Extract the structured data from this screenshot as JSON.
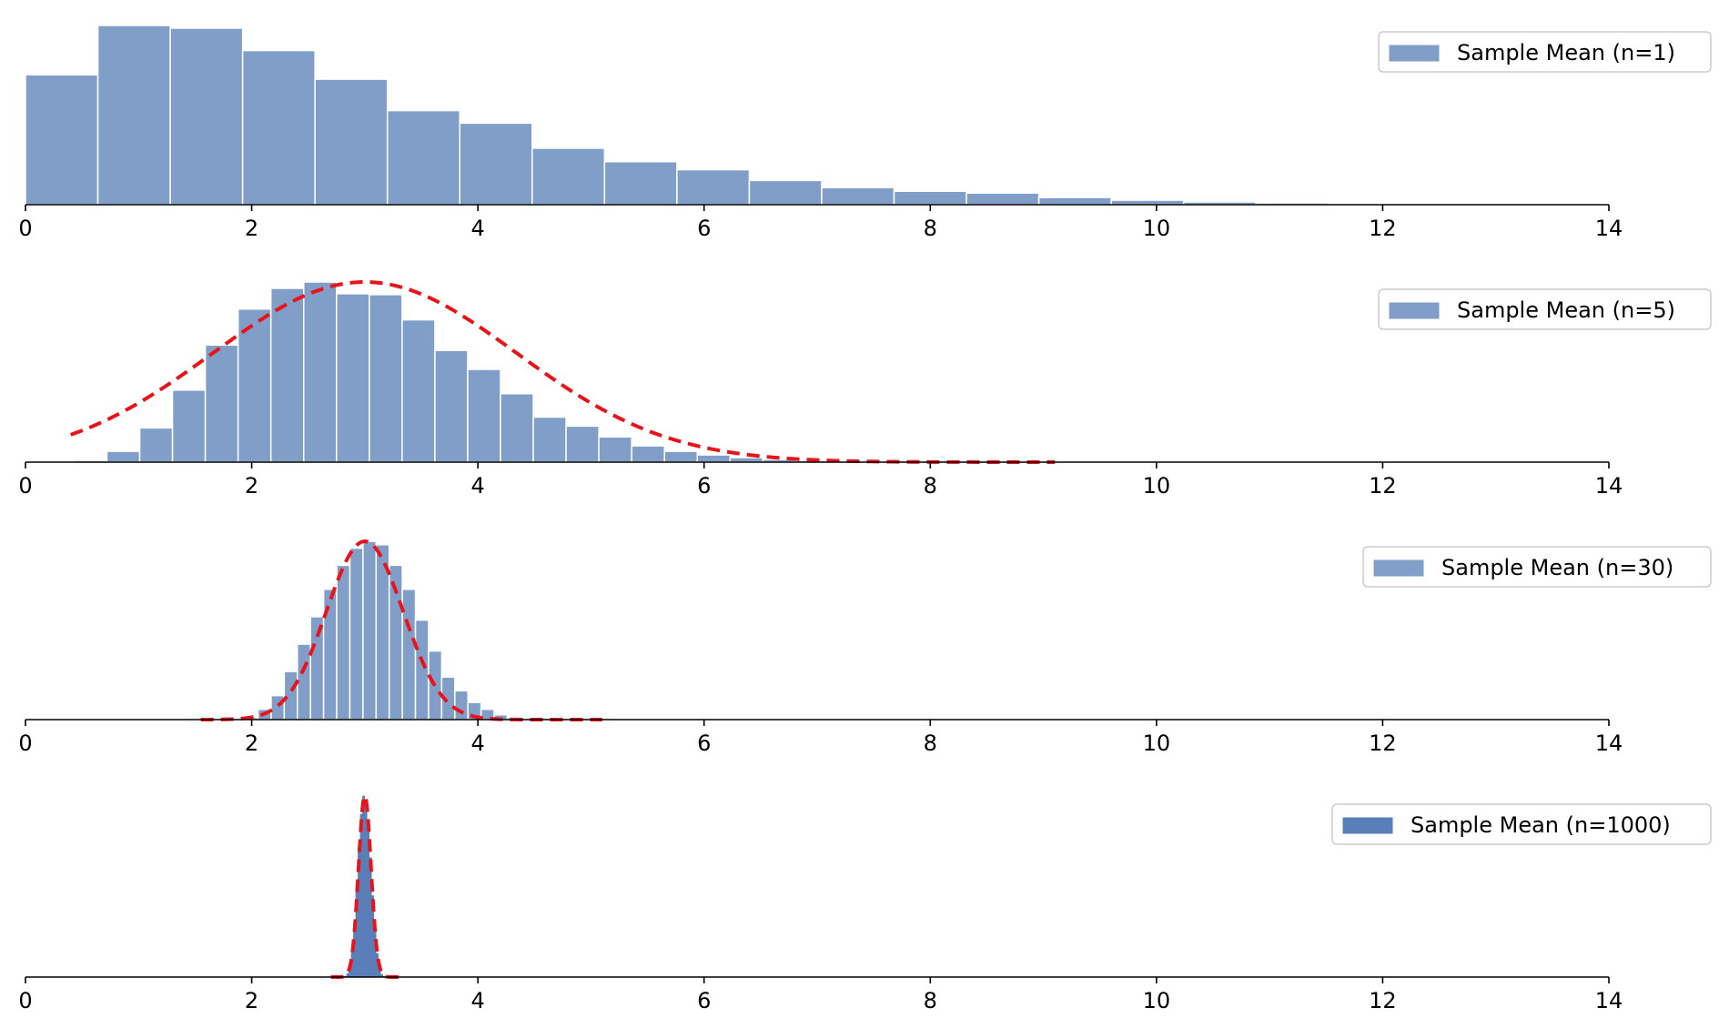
{
  "colors": {
    "bar": "#819ec9",
    "bar_edge": "#ffffff",
    "bar_dense": "#5a7fb8",
    "fit_line": "#e8141b",
    "axis": "#000000",
    "legend_border": "#cccccc"
  },
  "chart_data": [
    {
      "type": "bar",
      "legend": "Sample Mean (n=1)",
      "legend_placement": "top-right",
      "xlim": [
        0,
        14
      ],
      "xticks": [
        0,
        2,
        4,
        6,
        8,
        10,
        12,
        14
      ],
      "y_axis_visible": false,
      "grid": false,
      "bin_width": 0.64,
      "bins": [
        {
          "x0": 0.0,
          "density": 0.145
        },
        {
          "x0": 0.64,
          "density": 0.2
        },
        {
          "x0": 1.28,
          "density": 0.197
        },
        {
          "x0": 1.92,
          "density": 0.172
        },
        {
          "x0": 2.56,
          "density": 0.14
        },
        {
          "x0": 3.2,
          "density": 0.105
        },
        {
          "x0": 3.84,
          "density": 0.091
        },
        {
          "x0": 4.48,
          "density": 0.063
        },
        {
          "x0": 5.12,
          "density": 0.048
        },
        {
          "x0": 5.76,
          "density": 0.039
        },
        {
          "x0": 6.4,
          "density": 0.027
        },
        {
          "x0": 7.04,
          "density": 0.019
        },
        {
          "x0": 7.68,
          "density": 0.015
        },
        {
          "x0": 8.32,
          "density": 0.013
        },
        {
          "x0": 8.96,
          "density": 0.008
        },
        {
          "x0": 9.6,
          "density": 0.005
        },
        {
          "x0": 10.24,
          "density": 0.003
        },
        {
          "x0": 10.88,
          "density": 0.002
        },
        {
          "x0": 11.52,
          "density": 0.001
        },
        {
          "x0": 12.16,
          "density": 0.001
        },
        {
          "x0": 12.8,
          "density": 0.001
        },
        {
          "x0": 13.44,
          "density": 0.0005
        },
        {
          "x0": 14.08,
          "density": 0.0005
        }
      ],
      "ylim": [
        0,
        0.2
      ]
    },
    {
      "type": "bar",
      "legend": "Sample Mean (n=5)",
      "legend_placement": "top-right",
      "xlim": [
        0,
        14
      ],
      "xticks": [
        0,
        2,
        4,
        6,
        8,
        10,
        12,
        14
      ],
      "y_axis_visible": false,
      "grid": false,
      "bin_width": 0.29,
      "bins": [
        {
          "x0": 0.43,
          "density": 0.002
        },
        {
          "x0": 0.72,
          "density": 0.012
        },
        {
          "x0": 1.01,
          "density": 0.038
        },
        {
          "x0": 1.3,
          "density": 0.08
        },
        {
          "x0": 1.59,
          "density": 0.13
        },
        {
          "x0": 1.88,
          "density": 0.17
        },
        {
          "x0": 2.17,
          "density": 0.193
        },
        {
          "x0": 2.46,
          "density": 0.2
        },
        {
          "x0": 2.75,
          "density": 0.187
        },
        {
          "x0": 3.04,
          "density": 0.186
        },
        {
          "x0": 3.33,
          "density": 0.158
        },
        {
          "x0": 3.62,
          "density": 0.124
        },
        {
          "x0": 3.91,
          "density": 0.103
        },
        {
          "x0": 4.2,
          "density": 0.076
        },
        {
          "x0": 4.49,
          "density": 0.05
        },
        {
          "x0": 4.78,
          "density": 0.04
        },
        {
          "x0": 5.07,
          "density": 0.028
        },
        {
          "x0": 5.36,
          "density": 0.018
        },
        {
          "x0": 5.65,
          "density": 0.012
        },
        {
          "x0": 5.94,
          "density": 0.008
        },
        {
          "x0": 6.23,
          "density": 0.005
        },
        {
          "x0": 6.52,
          "density": 0.003
        },
        {
          "x0": 6.81,
          "density": 0.002
        },
        {
          "x0": 7.1,
          "density": 0.001
        },
        {
          "x0": 7.39,
          "density": 0.001
        },
        {
          "x0": 7.68,
          "density": 0.001
        },
        {
          "x0": 7.97,
          "density": 0.0005
        }
      ],
      "fit": {
        "mean": 3.0,
        "sd": 1.34,
        "x_range": [
          0.4,
          9.1
        ]
      },
      "ylim": [
        0,
        0.2
      ]
    },
    {
      "type": "bar",
      "legend": "Sample Mean (n=30)",
      "legend_placement": "top-right",
      "xlim": [
        0,
        14
      ],
      "xticks": [
        0,
        2,
        4,
        6,
        8,
        10,
        12,
        14
      ],
      "y_axis_visible": false,
      "grid": false,
      "bin_width": 0.116,
      "bins": [
        {
          "x0": 1.94,
          "density": 0.003
        },
        {
          "x0": 2.056,
          "density": 0.015
        },
        {
          "x0": 2.172,
          "density": 0.035
        },
        {
          "x0": 2.288,
          "density": 0.07
        },
        {
          "x0": 2.404,
          "density": 0.11
        },
        {
          "x0": 2.52,
          "density": 0.15
        },
        {
          "x0": 2.636,
          "density": 0.19
        },
        {
          "x0": 2.752,
          "density": 0.225
        },
        {
          "x0": 2.868,
          "density": 0.25
        },
        {
          "x0": 2.984,
          "density": 0.26
        },
        {
          "x0": 3.1,
          "density": 0.255
        },
        {
          "x0": 3.216,
          "density": 0.225
        },
        {
          "x0": 3.332,
          "density": 0.19
        },
        {
          "x0": 3.448,
          "density": 0.145
        },
        {
          "x0": 3.564,
          "density": 0.1
        },
        {
          "x0": 3.68,
          "density": 0.062
        },
        {
          "x0": 3.796,
          "density": 0.042
        },
        {
          "x0": 3.912,
          "density": 0.025
        },
        {
          "x0": 4.028,
          "density": 0.015
        },
        {
          "x0": 4.144,
          "density": 0.007
        },
        {
          "x0": 4.26,
          "density": 0.003
        },
        {
          "x0": 4.376,
          "density": 0.002
        },
        {
          "x0": 4.492,
          "density": 0.001
        }
      ],
      "fit": {
        "mean": 3.0,
        "sd": 0.34,
        "x_range": [
          1.55,
          5.1
        ]
      },
      "ylim": [
        0,
        0.26
      ]
    },
    {
      "type": "bar",
      "legend": "Sample Mean (n=1000)",
      "legend_placement": "top-right",
      "xlim": [
        0,
        14
      ],
      "xticks": [
        0,
        2,
        4,
        6,
        8,
        10,
        12,
        14
      ],
      "y_axis_visible": false,
      "grid": false,
      "bin_width": 0.02,
      "bins": [
        {
          "x0": 2.82,
          "density": 0.005
        },
        {
          "x0": 2.84,
          "density": 0.02
        },
        {
          "x0": 2.86,
          "density": 0.06
        },
        {
          "x0": 2.88,
          "density": 0.15
        },
        {
          "x0": 2.9,
          "density": 0.3
        },
        {
          "x0": 2.92,
          "density": 0.5
        },
        {
          "x0": 2.94,
          "density": 0.72
        },
        {
          "x0": 2.96,
          "density": 0.9
        },
        {
          "x0": 2.98,
          "density": 1.0
        },
        {
          "x0": 3.0,
          "density": 0.98
        },
        {
          "x0": 3.02,
          "density": 0.86
        },
        {
          "x0": 3.04,
          "density": 0.66
        },
        {
          "x0": 3.06,
          "density": 0.45
        },
        {
          "x0": 3.08,
          "density": 0.26
        },
        {
          "x0": 3.1,
          "density": 0.13
        },
        {
          "x0": 3.12,
          "density": 0.05
        },
        {
          "x0": 3.14,
          "density": 0.015
        },
        {
          "x0": 3.16,
          "density": 0.004
        }
      ],
      "fit": {
        "mean": 3.0,
        "sd": 0.055,
        "x_range": [
          2.7,
          3.3
        ]
      },
      "ylim": [
        0,
        1.0
      ]
    }
  ]
}
